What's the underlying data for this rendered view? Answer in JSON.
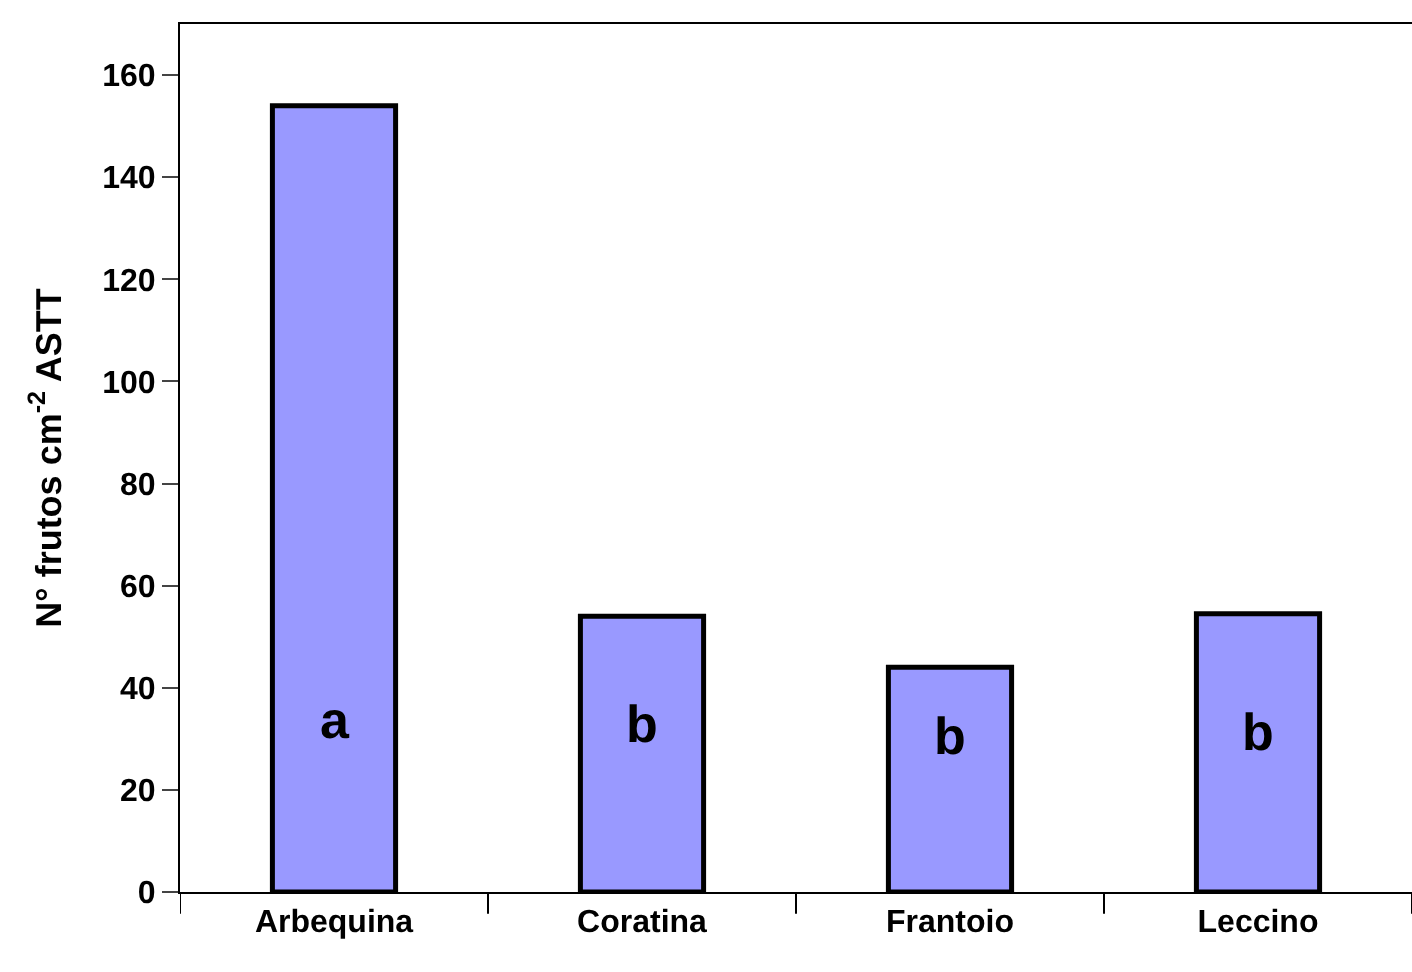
{
  "chart_data": {
    "type": "bar",
    "ylabel": "N° frutos cm$^{-2}$ ASTT",
    "categories": [
      "Arbequina",
      "Coratina",
      "Frantoio",
      "Leccino"
    ],
    "values": [
      154,
      54,
      44,
      54.5
    ],
    "color": "#9999ff",
    "ylim": [
      0,
      170
    ],
    "yticks": [
      0,
      20,
      40,
      60,
      80,
      100,
      120,
      140,
      160
    ],
    "annotations": [
      "a",
      "b",
      "b",
      "b"
    ]
  }
}
